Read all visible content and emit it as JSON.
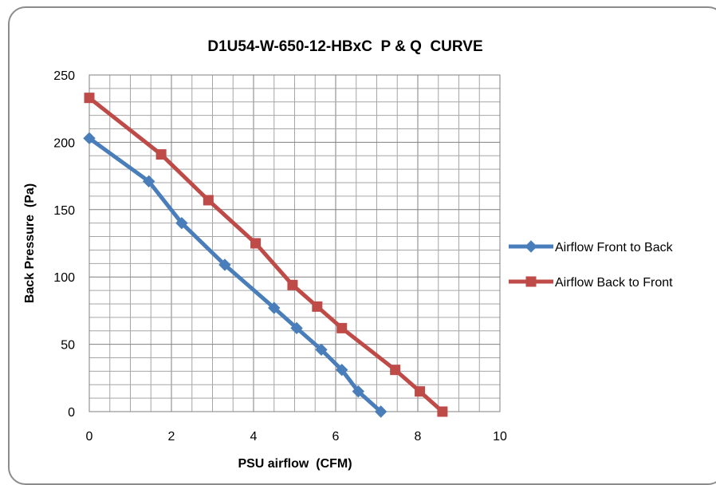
{
  "chart_data": {
    "type": "line",
    "title": "D1U54-W-650-12-HBxC  P & Q  CURVE",
    "xlabel": "PSU airflow  (CFM)",
    "ylabel": "Back Pressure  (Pa)",
    "xlim": [
      0,
      10
    ],
    "ylim": [
      0,
      250
    ],
    "x_ticks": [
      "0",
      "2",
      "4",
      "6",
      "8",
      "10"
    ],
    "y_ticks": [
      "0",
      "50",
      "100",
      "150",
      "200",
      "250"
    ],
    "grid": true,
    "legend_position": "right",
    "series": [
      {
        "name": "Airflow Front to Back",
        "color": "#4a7ebb",
        "marker": "diamond",
        "x": [
          0,
          1.45,
          2.25,
          3.3,
          4.5,
          5.05,
          5.65,
          6.15,
          6.55,
          7.1
        ],
        "y": [
          203,
          171,
          140,
          109,
          77,
          62,
          46,
          31,
          15,
          0
        ]
      },
      {
        "name": "Airflow Back to Front",
        "color": "#be4b48",
        "marker": "square",
        "x": [
          0,
          1.75,
          2.9,
          4.05,
          4.95,
          5.55,
          6.15,
          7.45,
          8.05,
          8.6
        ],
        "y": [
          233,
          191,
          157,
          125,
          94,
          78,
          62,
          31,
          15,
          0
        ]
      }
    ]
  }
}
